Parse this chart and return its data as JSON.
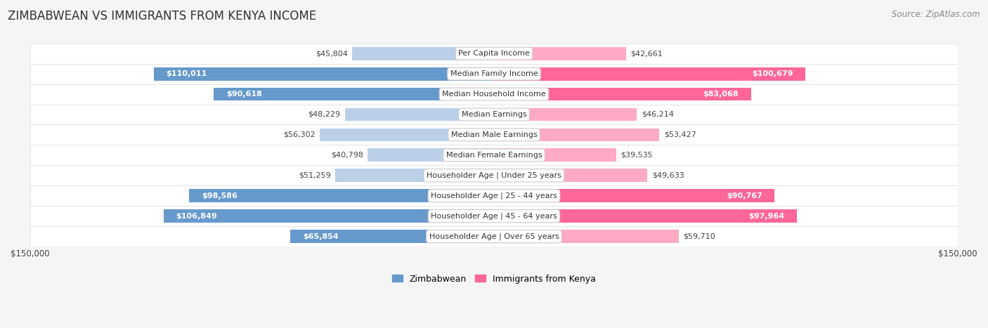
{
  "title": "ZIMBABWEAN VS IMMIGRANTS FROM KENYA INCOME",
  "source": "Source: ZipAtlas.com",
  "categories": [
    "Per Capita Income",
    "Median Family Income",
    "Median Household Income",
    "Median Earnings",
    "Median Male Earnings",
    "Median Female Earnings",
    "Householder Age | Under 25 years",
    "Householder Age | 25 - 44 years",
    "Householder Age | 45 - 64 years",
    "Householder Age | Over 65 years"
  ],
  "zimbabwean_values": [
    45804,
    110011,
    90618,
    48229,
    56302,
    40798,
    51259,
    98586,
    106849,
    65854
  ],
  "kenya_values": [
    42661,
    100679,
    83068,
    46214,
    53427,
    39535,
    49633,
    90767,
    97964,
    59710
  ],
  "zimbabwean_labels": [
    "$45,804",
    "$110,011",
    "$90,618",
    "$48,229",
    "$56,302",
    "$40,798",
    "$51,259",
    "$98,586",
    "$106,849",
    "$65,854"
  ],
  "kenya_labels": [
    "$42,661",
    "$100,679",
    "$83,068",
    "$46,214",
    "$53,427",
    "$39,535",
    "$49,633",
    "$90,767",
    "$97,964",
    "$59,710"
  ],
  "max_value": 150000,
  "zimbabwean_color_dark": "#6699CC",
  "zimbabwean_color_light": "#BBCFE8",
  "kenya_color_dark": "#FF6699",
  "kenya_color_light": "#FFAAC4",
  "background_color": "#f5f5f5",
  "label_fontsize": 8.0,
  "title_fontsize": 12,
  "axis_label_fontsize": 8.5,
  "legend_fontsize": 9,
  "threshold_for_white_label": 62000
}
